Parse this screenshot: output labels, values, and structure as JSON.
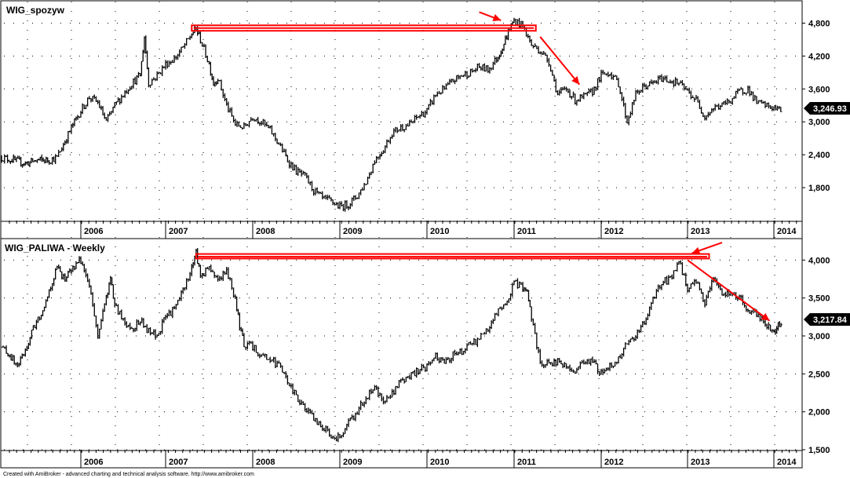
{
  "footer": {
    "credit": "Created with AmiBroker - advanced charting and technical analysis software. http://www.amibroker.com"
  },
  "chart_data": [
    {
      "type": "line",
      "title": "WIG_spozyw",
      "x_tick_labels": [
        "2006",
        "2007",
        "2008",
        "2009",
        "2010",
        "2011",
        "2012",
        "2013",
        "2014"
      ],
      "y_ticks": [
        1800,
        2400,
        3000,
        3600,
        4200,
        4800
      ],
      "y_tick_labels": [
        "1,800",
        "2,400",
        "3,000",
        "3,600",
        "4,200",
        "4,800"
      ],
      "ylim": [
        1200,
        5050
      ],
      "xlim": [
        2005.0,
        2014.2
      ],
      "last_value": 3246.93,
      "last_label": "3,246.93",
      "grid": true,
      "series": [
        {
          "x": [
            2005.0,
            2005.15,
            2005.3,
            2005.45,
            2005.6,
            2005.7,
            2005.8,
            2005.9,
            2006.0,
            2006.1,
            2006.2,
            2006.3,
            2006.4,
            2006.5,
            2006.6,
            2006.7,
            2006.75,
            2006.8,
            2006.9,
            2007.0,
            2007.1,
            2007.2,
            2007.3,
            2007.35,
            2007.4,
            2007.5,
            2007.55,
            2007.6,
            2007.7,
            2007.8,
            2007.9,
            2008.0,
            2008.1,
            2008.2,
            2008.3,
            2008.4,
            2008.5,
            2008.6,
            2008.7,
            2008.8,
            2008.9,
            2009.0,
            2009.1,
            2009.2,
            2009.3,
            2009.4,
            2009.5,
            2009.6,
            2009.7,
            2009.8,
            2009.9,
            2010.0,
            2010.1,
            2010.2,
            2010.3,
            2010.4,
            2010.5,
            2010.6,
            2010.7,
            2010.8,
            2010.85,
            2010.9,
            2010.95,
            2011.0,
            2011.1,
            2011.2,
            2011.3,
            2011.4,
            2011.5,
            2011.6,
            2011.7,
            2011.8,
            2011.9,
            2012.0,
            2012.1,
            2012.2,
            2012.3,
            2012.4,
            2012.5,
            2012.6,
            2012.7,
            2012.8,
            2012.9,
            2013.0,
            2013.1,
            2013.2,
            2013.3,
            2013.4,
            2013.5,
            2013.6,
            2013.7,
            2013.8,
            2013.9,
            2014.0,
            2014.1
          ],
          "y": [
            2350,
            2300,
            2240,
            2300,
            2300,
            2350,
            2650,
            2950,
            3200,
            3450,
            3350,
            3000,
            3300,
            3500,
            3700,
            3850,
            4550,
            3700,
            3850,
            4050,
            4150,
            4350,
            4600,
            4700,
            4500,
            4050,
            3700,
            3800,
            3300,
            2950,
            2900,
            3100,
            3000,
            2850,
            2600,
            2300,
            2100,
            2000,
            1750,
            1600,
            1550,
            1450,
            1500,
            1650,
            1900,
            2300,
            2500,
            2800,
            2900,
            2950,
            3100,
            3200,
            3500,
            3600,
            3750,
            3850,
            3900,
            4000,
            3950,
            4150,
            4300,
            4500,
            4700,
            4850,
            4750,
            4400,
            4300,
            4100,
            3500,
            3600,
            3400,
            3450,
            3550,
            3850,
            3900,
            3700,
            3000,
            3500,
            3650,
            3700,
            3800,
            3750,
            3700,
            3550,
            3400,
            3100,
            3250,
            3300,
            3400,
            3550,
            3600,
            3350,
            3300,
            3250,
            3200
          ]
        }
      ],
      "annotations": [
        {
          "type": "resistance-box",
          "x_start": 2007.3,
          "x_end": 2011.25,
          "y_low": 4660,
          "y_high": 4760
        },
        {
          "type": "arrow",
          "x1": 2010.6,
          "y1": 5000,
          "x2": 2010.85,
          "y2": 4850
        },
        {
          "type": "arrow",
          "x1": 2011.3,
          "y1": 4550,
          "x2": 2011.75,
          "y2": 3680
        }
      ]
    },
    {
      "type": "line",
      "title": "WIG_PALIWA - Weekly",
      "x_tick_labels": [
        "2006",
        "2007",
        "2008",
        "2009",
        "2010",
        "2011",
        "2012",
        "2013",
        "2014"
      ],
      "y_ticks": [
        1500,
        2000,
        2500,
        3000,
        3500,
        4000
      ],
      "y_tick_labels": [
        "1,500",
        "2,000",
        "2,500",
        "3,000",
        "3,500",
        "4,000"
      ],
      "ylim": [
        1500,
        4200
      ],
      "xlim": [
        2005.0,
        2014.2
      ],
      "last_value": 3217.84,
      "last_label": "3,217.84",
      "grid": true,
      "series": [
        {
          "x": [
            2005.0,
            2005.1,
            2005.2,
            2005.3,
            2005.4,
            2005.5,
            2005.6,
            2005.7,
            2005.8,
            2005.9,
            2006.0,
            2006.1,
            2006.2,
            2006.3,
            2006.35,
            2006.4,
            2006.5,
            2006.6,
            2006.7,
            2006.8,
            2006.9,
            2007.0,
            2007.1,
            2007.2,
            2007.3,
            2007.35,
            2007.4,
            2007.5,
            2007.6,
            2007.7,
            2007.8,
            2007.85,
            2007.9,
            2008.0,
            2008.1,
            2008.2,
            2008.3,
            2008.4,
            2008.5,
            2008.6,
            2008.7,
            2008.8,
            2008.9,
            2009.0,
            2009.1,
            2009.2,
            2009.3,
            2009.4,
            2009.5,
            2009.6,
            2009.7,
            2009.8,
            2009.9,
            2010.0,
            2010.1,
            2010.2,
            2010.3,
            2010.4,
            2010.5,
            2010.6,
            2010.7,
            2010.8,
            2010.9,
            2011.0,
            2011.1,
            2011.15,
            2011.2,
            2011.3,
            2011.4,
            2011.5,
            2011.6,
            2011.7,
            2011.8,
            2011.9,
            2012.0,
            2012.1,
            2012.2,
            2012.3,
            2012.4,
            2012.5,
            2012.6,
            2012.7,
            2012.8,
            2012.9,
            2013.0,
            2013.1,
            2013.2,
            2013.3,
            2013.4,
            2013.5,
            2013.6,
            2013.7,
            2013.8,
            2013.9,
            2014.0,
            2014.05,
            2014.1
          ],
          "y": [
            2850,
            2750,
            2600,
            2800,
            3100,
            3300,
            3600,
            3900,
            3750,
            3900,
            4000,
            3650,
            3000,
            3500,
            3750,
            3400,
            3200,
            3100,
            3200,
            3050,
            3000,
            3250,
            3350,
            3600,
            3900,
            4100,
            3800,
            3900,
            3750,
            3850,
            3500,
            3100,
            2900,
            2850,
            2750,
            2700,
            2600,
            2400,
            2200,
            2050,
            1900,
            1800,
            1700,
            1650,
            1850,
            2000,
            2200,
            2300,
            2150,
            2250,
            2400,
            2450,
            2550,
            2600,
            2750,
            2650,
            2750,
            2800,
            2900,
            2950,
            3100,
            3300,
            3400,
            3700,
            3650,
            3600,
            3250,
            2650,
            2650,
            2650,
            2600,
            2550,
            2650,
            2650,
            2500,
            2600,
            2700,
            2900,
            3000,
            3200,
            3500,
            3700,
            3750,
            4000,
            3600,
            3700,
            3450,
            3750,
            3550,
            3550,
            3500,
            3350,
            3300,
            3150,
            3050,
            3150,
            3200
          ]
        }
      ],
      "annotations": [
        {
          "type": "resistance-box",
          "x_start": 2007.35,
          "x_end": 2013.25,
          "y_low": 4020,
          "y_high": 4080
        },
        {
          "type": "arrow",
          "x1": 2013.4,
          "y1": 4230,
          "x2": 2013.05,
          "y2": 4090
        },
        {
          "type": "arrow",
          "x1": 2013.0,
          "y1": 4000,
          "x2": 2013.95,
          "y2": 3200
        }
      ]
    }
  ]
}
